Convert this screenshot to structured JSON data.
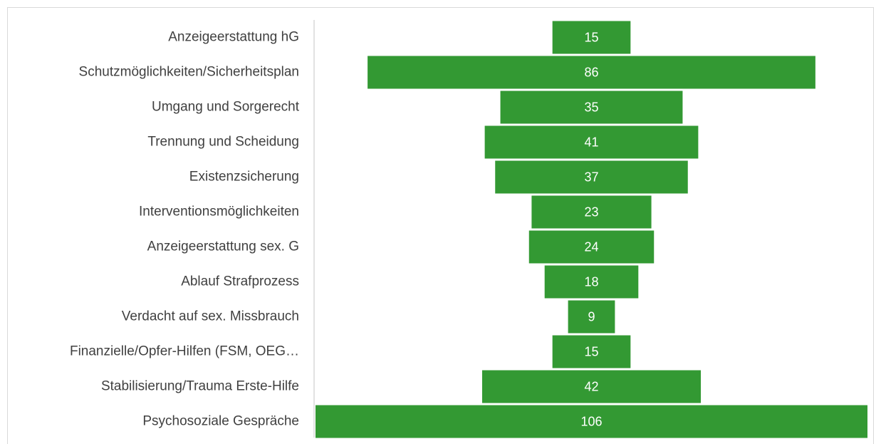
{
  "chart_data": {
    "type": "funnel",
    "categories": [
      "Anzeigeerstattung hG",
      "Schutzmöglichkeiten/Sicherheitsplan",
      "Umgang und Sorgerecht",
      "Trennung und Scheidung",
      "Existenzsicherung",
      "Interventionsmöglichkeiten",
      "Anzeigeerstattung sex. G",
      "Ablauf Strafprozess",
      "Verdacht auf sex. Missbrauch",
      "Finanzielle/Opfer-Hilfen (FSM, OEG…",
      "Stabilisierung/Trauma Erste-Hilfe",
      "Psychosoziale Gespräche"
    ],
    "values": [
      15,
      86,
      35,
      41,
      37,
      23,
      24,
      18,
      9,
      15,
      42,
      106
    ],
    "color": "#339933"
  }
}
